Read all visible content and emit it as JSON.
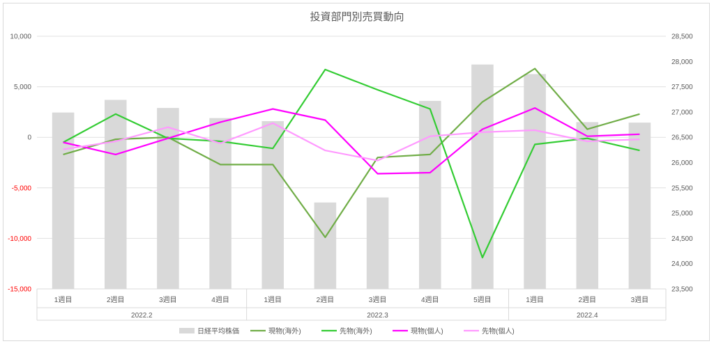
{
  "chart_data": {
    "type": "bar+line",
    "title": "投資部門別売買動向",
    "weeks": [
      "1週目",
      "2週目",
      "3週目",
      "4週目",
      "1週目",
      "2週目",
      "3週目",
      "4週目",
      "5週目",
      "1週目",
      "2週目",
      "3週目"
    ],
    "months": [
      {
        "label": "2022.2",
        "span": 4
      },
      {
        "label": "2022.3",
        "span": 5
      },
      {
        "label": "2022.4",
        "span": 3
      }
    ],
    "left_axis": {
      "ylim": [
        -15000,
        10000
      ],
      "ticks": [
        10000,
        5000,
        0,
        -5000,
        -10000,
        -15000
      ],
      "tick_labels": [
        "10,000",
        "5,000",
        "0",
        "-5,000",
        "-10,000",
        "-15,000"
      ],
      "negative_color": "#ff0000"
    },
    "right_axis": {
      "ylim": [
        23500,
        28500
      ],
      "ticks": [
        28500,
        28000,
        27500,
        27000,
        26500,
        26000,
        25500,
        25000,
        24500,
        24000,
        23500
      ],
      "tick_labels": [
        "28,500",
        "28,000",
        "27,500",
        "27,000",
        "26,500",
        "26,000",
        "25,500",
        "25,000",
        "24,500",
        "24,000",
        "23,500"
      ]
    },
    "bar_series": {
      "name": "日経平均株価",
      "axis": "right",
      "color": "#d9d9d9",
      "values": [
        26990,
        27240,
        27080,
        26880,
        26820,
        25210,
        25310,
        27220,
        27940,
        27750,
        26800,
        26790
      ]
    },
    "line_series": [
      {
        "name": "現物(海外)",
        "color": "#70ad47",
        "values": [
          -1700,
          -200,
          0,
          -2700,
          -2700,
          -9900,
          -2000,
          -1700,
          3500,
          6800,
          800,
          2300
        ]
      },
      {
        "name": "先物(海外)",
        "color": "#33cc33",
        "values": [
          -500,
          2300,
          -100,
          -400,
          -1100,
          6700,
          4700,
          2800,
          -11900,
          -700,
          -100,
          -1300
        ]
      },
      {
        "name": "現物(個人)",
        "color": "#ff00ff",
        "values": [
          -500,
          -1700,
          -100,
          1500,
          2800,
          1700,
          -3600,
          -3500,
          800,
          2900,
          100,
          300
        ]
      },
      {
        "name": "先物(個人)",
        "color": "#ff99ff",
        "values": [
          -1200,
          -400,
          1000,
          -600,
          1400,
          -1300,
          -2300,
          100,
          500,
          700,
          -400,
          -200
        ]
      }
    ],
    "legend_placement": "bottom"
  }
}
